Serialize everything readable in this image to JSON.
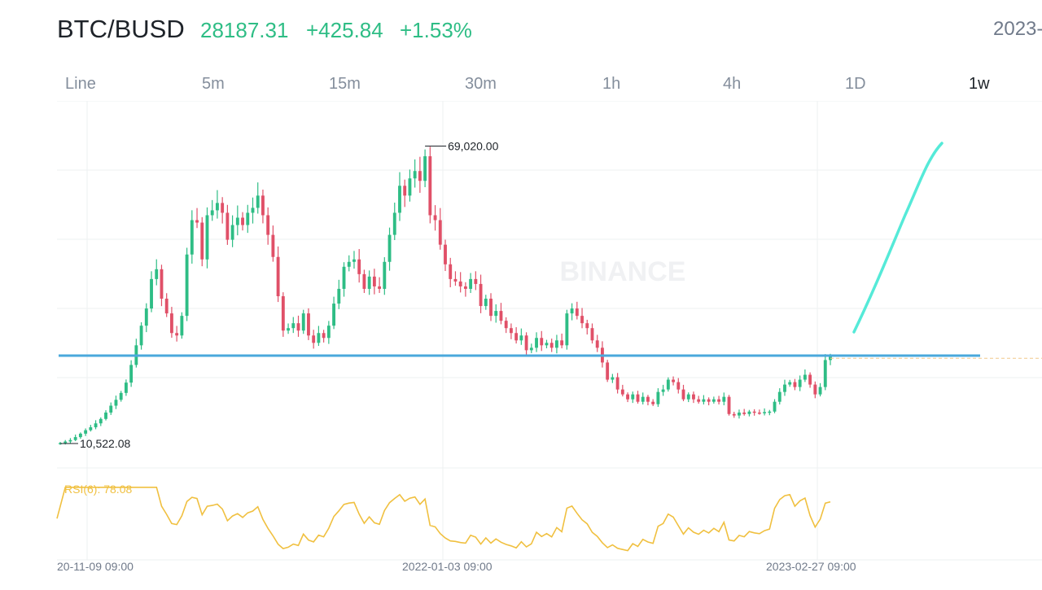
{
  "header": {
    "symbol": "BTC/BUSD",
    "price": "28187.31",
    "change": "+425.84",
    "change_pct": "+1.53%",
    "date": "2023-"
  },
  "intervals": [
    "Line",
    "5m",
    "15m",
    "30m",
    "1h",
    "4h",
    "1D",
    "1w"
  ],
  "active_interval": "1w",
  "watermark": "BINANCE",
  "colors": {
    "up": "#2ebd85",
    "down": "#e05068",
    "support": "#4aa8dc",
    "rsi": "#f0c040",
    "projection": "#55ead8",
    "grid": "#eef0f2"
  },
  "chart_data": {
    "type": "candlestick",
    "x_labels": [
      "20-11-09 09:00",
      "2022-01-03 09:00",
      "2023-02-27 09:00"
    ],
    "high_label": "69,020.00",
    "low_label": "10,522.08",
    "support_level": 28400,
    "ylim": [
      9000,
      72000
    ],
    "close_series": [
      10600,
      10900,
      11200,
      11800,
      12500,
      13200,
      13800,
      14600,
      15500,
      16800,
      18200,
      19400,
      20800,
      22900,
      26500,
      30500,
      34500,
      38000,
      44000,
      46000,
      40000,
      37000,
      33000,
      32500,
      36500,
      49000,
      56000,
      55500,
      48000,
      57000,
      58000,
      59500,
      57500,
      52000,
      55000,
      56500,
      55000,
      57500,
      58500,
      61000,
      57000,
      53000,
      48500,
      40500,
      33500,
      34000,
      35000,
      33500,
      37000,
      32500,
      31000,
      33000,
      32000,
      34500,
      39000,
      42000,
      46500,
      47500,
      48000,
      45000,
      42000,
      44500,
      42500,
      42000,
      47500,
      53000,
      57500,
      63000,
      61000,
      64500,
      66000,
      64000,
      69020,
      57000,
      56000,
      51000,
      47000,
      44000,
      43500,
      42500,
      42000,
      44000,
      43000,
      38500,
      40000,
      36500,
      37500,
      35500,
      34000,
      33000,
      31500,
      32500,
      29500,
      30000,
      32000,
      30500,
      31000,
      30000,
      31500,
      30500,
      37000,
      38000,
      36500,
      35000,
      34000,
      31500,
      30000,
      27000,
      23500,
      24000,
      21500,
      20500,
      19500,
      20500,
      19000,
      20000,
      19000,
      18500,
      21000,
      21500,
      23500,
      23000,
      21500,
      19500,
      20500,
      19500,
      19000,
      19500,
      19000,
      19500,
      19000,
      20000,
      16500,
      16200,
      16800,
      16500,
      17000,
      16800,
      16700,
      16900,
      17000,
      19000,
      21000,
      22500,
      23000,
      22000,
      23500,
      24500,
      22500,
      20500,
      22000,
      27500,
      28200
    ],
    "rsi": {
      "label": "RSI(6): 78.08",
      "value": 78.08,
      "ylim": [
        0,
        100
      ]
    },
    "projection": "upward trend line drawn from support to top-right"
  }
}
